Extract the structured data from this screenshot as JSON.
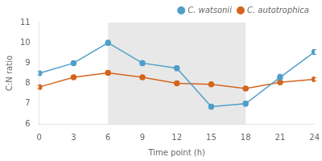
{
  "chart_data": {
    "type": "line",
    "xlabel": "Time point (h)",
    "ylabel": "C:N ratio",
    "x": [
      0,
      3,
      6,
      9,
      12,
      15,
      18,
      21,
      24
    ],
    "series": [
      {
        "name": "C. watsonii",
        "color": "#4f9fc8",
        "values": [
          8.5,
          9.0,
          10.0,
          9.0,
          8.75,
          6.85,
          7.0,
          8.3,
          9.55
        ],
        "errors": [
          0.08,
          0.1,
          0.12,
          0.12,
          0.12,
          0.12,
          0.12,
          0.15,
          0.12
        ]
      },
      {
        "name": "C. autotrophica",
        "color": "#d4651e",
        "values": [
          7.82,
          8.3,
          8.52,
          8.3,
          8.0,
          7.95,
          7.75,
          8.05,
          8.2
        ],
        "errors": [
          0.08,
          0.08,
          0.1,
          0.1,
          0.08,
          0.08,
          0.08,
          0.08,
          0.08
        ]
      }
    ],
    "shade_x": [
      6,
      18
    ],
    "xlim": [
      0,
      24
    ],
    "xticks": [
      0,
      3,
      6,
      9,
      12,
      15,
      18,
      21,
      24
    ],
    "ylim": [
      6,
      11
    ],
    "yticks": [
      6,
      7,
      8,
      9,
      10,
      11
    ],
    "legend": "upper right",
    "grid": false,
    "marker": "circle"
  }
}
